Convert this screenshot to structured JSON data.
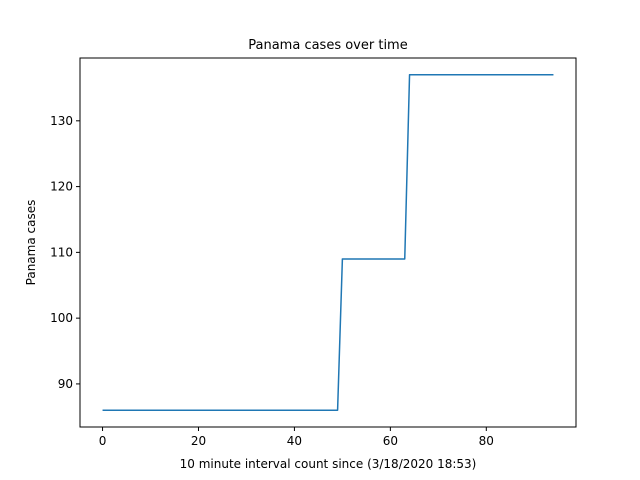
{
  "chart_data": {
    "type": "line",
    "title": "Panama cases over time",
    "xlabel": "10 minute interval count since (3/18/2020 18:53)",
    "ylabel": "Panama cases",
    "xlim": [
      -4.7,
      98.7
    ],
    "ylim": [
      83.45,
      139.55
    ],
    "xticks": [
      0,
      20,
      40,
      60,
      80
    ],
    "yticks": [
      90,
      100,
      110,
      120,
      130
    ],
    "grid": false,
    "line_color": "#1f77b4",
    "series": [
      {
        "x": [
          0,
          49,
          50,
          63,
          64,
          94
        ],
        "y": [
          86,
          86,
          109,
          109,
          137,
          137
        ]
      }
    ]
  }
}
